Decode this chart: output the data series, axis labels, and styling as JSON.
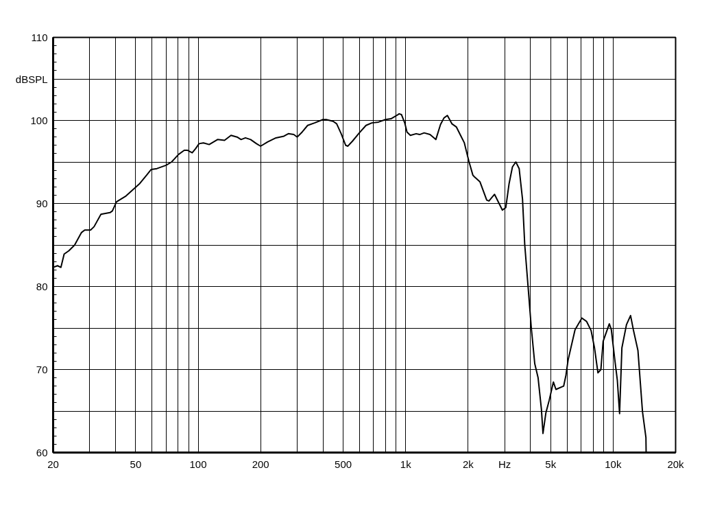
{
  "chart_data": {
    "type": "line",
    "log": "x",
    "grid": true,
    "marker": "none",
    "line_style": "solid",
    "xlim": [
      20,
      20000
    ],
    "ylim": [
      60,
      110
    ],
    "xticks": [
      20,
      {
        "value": 30,
        "label": null
      },
      {
        "value": 40,
        "label": null
      },
      50,
      {
        "value": 60,
        "label": null
      },
      {
        "value": 70,
        "label": null
      },
      {
        "value": 80,
        "label": null
      },
      {
        "value": 90,
        "label": null
      },
      100,
      200,
      {
        "value": 300,
        "label": null
      },
      {
        "value": 400,
        "label": null
      },
      500,
      {
        "value": 600,
        "label": null
      },
      {
        "value": 700,
        "label": null
      },
      {
        "value": 800,
        "label": null
      },
      {
        "value": 900,
        "label": null
      },
      {
        "value": 1000,
        "label": "1k"
      },
      {
        "value": 2000,
        "label": "2k"
      },
      {
        "value": 3000,
        "label": "Hz"
      },
      {
        "value": 4000,
        "label": null
      },
      {
        "value": 5000,
        "label": "5k"
      },
      {
        "value": 6000,
        "label": null
      },
      {
        "value": 7000,
        "label": null
      },
      {
        "value": 8000,
        "label": null
      },
      {
        "value": 9000,
        "label": null
      },
      {
        "value": 10000,
        "label": "10k"
      },
      {
        "value": 20000,
        "label": "20k"
      }
    ],
    "yticks": [
      60,
      {
        "value": 65,
        "label": null
      },
      70,
      {
        "value": 75,
        "label": null
      },
      80,
      {
        "value": 85,
        "label": null
      },
      90,
      {
        "value": 95,
        "label": null
      },
      100,
      {
        "value": 105,
        "label": "dBSPL"
      },
      110
    ],
    "x": [
      20,
      21,
      21.8,
      22.6,
      23.8,
      25.4,
      27.4,
      28.4,
      30.3,
      31.5,
      34,
      37.6,
      38.6,
      40.4,
      44.9,
      49.7,
      52.3,
      56.4,
      59.4,
      63.3,
      70,
      74.5,
      80.4,
      85.7,
      89,
      93.6,
      97.2,
      101,
      106,
      113,
      124,
      134,
      144,
      154,
      161,
      169,
      179,
      191,
      200,
      216,
      237,
      259,
      272,
      289,
      300,
      317,
      337,
      364,
      399,
      414,
      447,
      465,
      489,
      514,
      526,
      554,
      598,
      644,
      687,
      740,
      798,
      850,
      906,
      930,
      955,
      990,
      1015,
      1054,
      1124,
      1168,
      1228,
      1310,
      1398,
      1472,
      1530,
      1589,
      1670,
      1757,
      1848,
      1918,
      2016,
      2109,
      2146,
      2282,
      2459,
      2520,
      2682,
      2926,
      3038,
      3152,
      3271,
      3396,
      3524,
      3658,
      3750,
      3890,
      4036,
      4190,
      4348,
      4512,
      4590,
      4742,
      4920,
      5152,
      5300,
      5774,
      5921,
      6072,
      6552,
      7068,
      7441,
      7828,
      8132,
      8448,
      8728,
      8950,
      9584,
      9800,
      10216,
      10476,
      10740,
      11020,
      11594,
      12134,
      12512,
      13166,
      13852,
      14388,
      14420
    ],
    "series": [
      {
        "color": "#000000",
        "values": [
          82.3,
          82.5,
          82.3,
          83.9,
          84.3,
          85.0,
          86.5,
          86.8,
          86.8,
          87.2,
          88.7,
          88.9,
          89.1,
          90.2,
          90.9,
          91.9,
          92.4,
          93.4,
          94.1,
          94.2,
          94.6,
          95.0,
          95.9,
          96.4,
          96.4,
          96.1,
          96.6,
          97.2,
          97.3,
          97.1,
          97.7,
          97.6,
          98.2,
          98.0,
          97.7,
          97.9,
          97.7,
          97.2,
          96.9,
          97.4,
          97.9,
          98.1,
          98.4,
          98.3,
          98.0,
          98.6,
          99.4,
          99.7,
          100.1,
          100.1,
          99.9,
          99.6,
          98.4,
          97.0,
          96.9,
          97.5,
          98.5,
          99.4,
          99.7,
          99.8,
          100.1,
          100.2,
          100.6,
          100.8,
          100.7,
          99.7,
          98.6,
          98.2,
          98.4,
          98.3,
          98.5,
          98.3,
          97.7,
          99.5,
          100.3,
          100.6,
          99.6,
          99.2,
          98.1,
          97.3,
          95.1,
          93.4,
          93.2,
          92.6,
          90.4,
          90.3,
          91.1,
          89.2,
          89.5,
          92.4,
          94.4,
          95.0,
          94.2,
          90.5,
          85.0,
          80.0,
          74.9,
          70.7,
          69.0,
          65.2,
          62.3,
          64.8,
          66.3,
          68.5,
          67.6,
          68.0,
          69.3,
          71.2,
          74.8,
          76.2,
          75.8,
          74.7,
          72.6,
          69.6,
          70.0,
          73.4,
          75.5,
          74.8,
          70.9,
          68.7,
          64.7,
          72.6,
          75.4,
          76.5,
          74.8,
          72.3,
          64.9,
          61.8,
          60.0
        ]
      }
    ]
  }
}
